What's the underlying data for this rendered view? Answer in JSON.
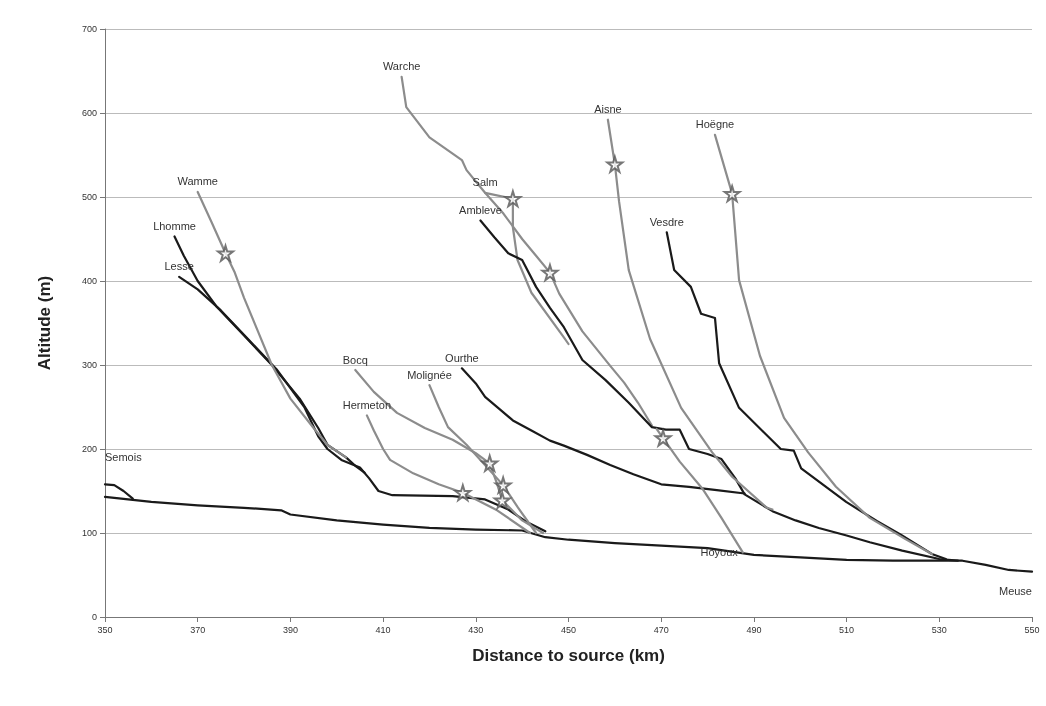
{
  "chart_data": {
    "type": "line",
    "xlabel": "Distance to source (km)",
    "ylabel": "Altitude (m)",
    "xlim": [
      350,
      550
    ],
    "xticks": [
      350,
      370,
      390,
      410,
      430,
      450,
      470,
      490,
      510,
      530,
      550
    ],
    "ylim": [
      0,
      700
    ],
    "yticks": [
      0,
      100,
      200,
      300,
      400,
      500,
      600,
      700
    ],
    "grid": "y",
    "legend": false,
    "line_style": "solid",
    "series": [
      {
        "name": "Meuse",
        "color": "#1a1a1a",
        "x": [
          350,
          360,
          370,
          380,
          388,
          390,
          400,
          410,
          420,
          430,
          440,
          445,
          450,
          460,
          470,
          480,
          490,
          500,
          510,
          520,
          530,
          535,
          540,
          545,
          550
        ],
        "values": [
          143,
          137,
          133,
          130,
          127,
          122,
          115,
          110,
          106,
          104,
          103,
          95,
          92,
          88,
          85,
          82,
          74,
          71,
          68,
          67,
          67,
          67,
          62,
          56,
          54
        ]
      },
      {
        "name": "Semois",
        "color": "#1a1a1a",
        "x": [
          350,
          352,
          354,
          356
        ],
        "values": [
          158,
          157,
          150,
          141
        ]
      },
      {
        "name": "Lhomme",
        "color": "#1a1a1a",
        "x": [
          365,
          367,
          370,
          374,
          380,
          386,
          392,
          396,
          398,
          402,
          404,
          406
        ],
        "values": [
          453,
          430,
          400,
          370,
          335,
          300,
          260,
          225,
          205,
          190,
          180,
          172
        ]
      },
      {
        "name": "Lesse",
        "color": "#1a1a1a",
        "x": [
          366,
          370,
          375,
          381,
          387,
          393,
          396,
          398,
          401,
          405,
          407,
          409,
          412,
          425,
          432,
          437,
          441,
          445
        ],
        "values": [
          405,
          390,
          365,
          330,
          295,
          250,
          215,
          200,
          187,
          178,
          165,
          150,
          145,
          144,
          140,
          128,
          113,
          102
        ]
      },
      {
        "name": "Wamme",
        "color": "#8c8c8c",
        "x": [
          370,
          373,
          376,
          378,
          380,
          383,
          386,
          390,
          395,
          398,
          402
        ],
        "values": [
          506,
          470,
          433,
          410,
          380,
          340,
          300,
          260,
          225,
          205,
          190
        ]
      },
      {
        "name": "Warche",
        "color": "#8c8c8c",
        "x": [
          414,
          415,
          420,
          427,
          428,
          432,
          438,
          438,
          439,
          442,
          449,
          450
        ],
        "values": [
          643,
          607,
          571,
          544,
          532,
          505,
          498,
          464,
          425,
          386,
          333,
          325
        ]
      },
      {
        "name": "Salm",
        "color": "#8c8c8c",
        "x": [
          432,
          436,
          440,
          443,
          446,
          448,
          453,
          459,
          462,
          465,
          468
        ],
        "values": [
          505,
          480,
          450,
          430,
          410,
          385,
          340,
          299,
          279,
          255,
          228
        ]
      },
      {
        "name": "Ambleve",
        "color": "#1a1a1a",
        "x": [
          431,
          434,
          437,
          440,
          443,
          446,
          449,
          453,
          458,
          463,
          468,
          471,
          474,
          476,
          480,
          483,
          486,
          488,
          494,
          499,
          504,
          510,
          515,
          522,
          530,
          534
        ],
        "values": [
          472,
          452,
          433,
          425,
          393,
          368,
          345,
          306,
          282,
          255,
          226,
          223,
          223,
          200,
          194,
          188,
          165,
          146,
          126,
          115,
          106,
          97,
          89,
          79,
          69,
          67
        ]
      },
      {
        "name": "Ourthe",
        "color": "#1a1a1a",
        "x": [
          427,
          430,
          432,
          435,
          438,
          442,
          446,
          449,
          454,
          459,
          464,
          470,
          476,
          482,
          488
        ],
        "values": [
          296,
          278,
          262,
          248,
          234,
          222,
          210,
          204,
          193,
          181,
          170,
          158,
          155,
          151,
          147
        ]
      },
      {
        "name": "Vesdre",
        "color": "#1a1a1a",
        "x": [
          471.2,
          472.8,
          476.4,
          478.6,
          481.6,
          482.5,
          486.8,
          495.8,
          498.6,
          500.2,
          509.9,
          516.6,
          521.7,
          528.4,
          531.4
        ],
        "values": [
          458,
          413,
          393,
          361,
          356,
          302,
          249,
          200,
          198,
          177,
          137,
          114,
          98,
          75,
          69
        ]
      },
      {
        "name": "Aisne",
        "color": "#8c8c8c",
        "x": [
          458.5,
          460,
          460.9,
          463,
          467.6,
          474.3,
          481,
          485.3,
          492.8,
          494
        ],
        "values": [
          592,
          539,
          495,
          413,
          331,
          249,
          196,
          167,
          130,
          128
        ]
      },
      {
        "name": "Hoëgne",
        "color": "#8c8c8c",
        "x": [
          481.6,
          485.3,
          486.8,
          491.3,
          496.5,
          501.7,
          507.7,
          515,
          522.6,
          528.4
        ],
        "values": [
          574,
          504,
          401,
          311,
          237,
          196,
          155,
          118,
          93,
          75
        ]
      },
      {
        "name": "Hoyoux",
        "color": "#8c8c8c",
        "x": [
          487.6,
          483,
          479,
          474,
          470.4,
          469
        ],
        "values": [
          77,
          118,
          152,
          185,
          213,
          224
        ]
      },
      {
        "name": "Bocq",
        "color": "#8c8c8c",
        "x": [
          404,
          408,
          413,
          419,
          425,
          430,
          433,
          434.5,
          435.7,
          440,
          444.5
        ],
        "values": [
          294,
          268,
          243,
          225,
          211,
          195,
          183,
          160,
          139,
          115,
          100
        ]
      },
      {
        "name": "Molignée",
        "color": "#8c8c8c",
        "x": [
          420,
          422,
          424,
          428,
          431,
          435.9,
          439,
          443
        ],
        "values": [
          276,
          250,
          226,
          205,
          187,
          157,
          131,
          100
        ]
      },
      {
        "name": "Hermeton",
        "color": "#8c8c8c",
        "x": [
          406.5,
          408,
          410,
          411.5,
          416.5,
          422,
          427.2,
          434.6,
          441.7
        ],
        "values": [
          240,
          222,
          200,
          187,
          171,
          158,
          148,
          127,
          100
        ]
      },
      {
        "type": "scatter",
        "marker": "star",
        "color": "#555555",
        "x": [
          376,
          438,
          446,
          460,
          485.3,
          470.4,
          427.2,
          433,
          435.9,
          435.7
        ],
        "values": [
          433,
          498,
          410,
          539,
          504,
          213,
          148,
          183,
          157,
          139
        ]
      }
    ]
  }
}
